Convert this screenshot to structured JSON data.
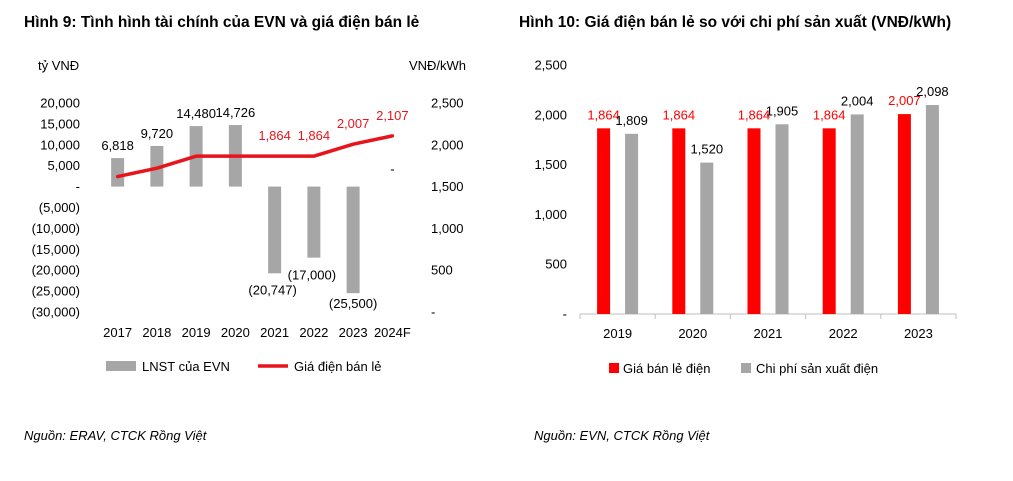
{
  "figure_left": {
    "title": "Hình 9: Tình hình tài chính của EVN và giá điện bán lẻ",
    "source": "Nguồn: ERAV, CTCK Rồng Việt"
  },
  "figure_right": {
    "title": "Hình 10: Giá điện bán lẻ so với chi phí sản xuất (VNĐ/kWh)",
    "source": "Nguồn: EVN, CTCK Rồng Việt"
  },
  "chart_data": [
    {
      "type": "bar",
      "title": "Hình 9: Tình hình tài chính của EVN và giá điện bán lẻ",
      "categories": [
        "2017",
        "2018",
        "2019",
        "2020",
        "2021",
        "2022",
        "2023",
        "2024F"
      ],
      "ylabel": "tỷ VNĐ",
      "y2label": "VNĐ/kWh",
      "ylim": [
        -30000,
        20000
      ],
      "y_ticks": [
        20000,
        15000,
        10000,
        5000,
        0,
        -5000,
        -10000,
        -15000,
        -20000,
        -25000,
        -30000
      ],
      "y_tick_labels": [
        "20,000",
        "15,000",
        "10,000",
        "5,000",
        "-",
        "(5,000)",
        "(10,000)",
        "(15,000)",
        "(20,000)",
        "(25,000)",
        "(30,000)"
      ],
      "y2lim": [
        0,
        2500
      ],
      "y2_ticks": [
        2500,
        2000,
        1500,
        1000,
        500,
        0
      ],
      "y2_tick_labels": [
        "2,500",
        "2,000",
        "1,500",
        "1,000",
        "500",
        "-"
      ],
      "legend_position": "bottom",
      "grid": false,
      "series": [
        {
          "name": "LNST của EVN",
          "kind": "bar",
          "axis": "left",
          "color": "#a6a6a6",
          "values": [
            6818,
            9720,
            14480,
            14726,
            -20747,
            -17000,
            -25500,
            0
          ],
          "labels": [
            "6,818",
            "9,720",
            "14,480",
            "14,726",
            "(20,747)",
            "(17,000)",
            "(25,500)",
            "-"
          ],
          "label_color": "#000000"
        },
        {
          "name": "Giá điện bán lẻ",
          "kind": "line",
          "axis": "right",
          "color": "#e8141b",
          "values": [
            1620,
            1720,
            1864,
            1864,
            1864,
            1864,
            2007,
            2107
          ],
          "labels": [
            "",
            "",
            "",
            "",
            "1,864",
            "1,864",
            "2,007",
            "2,107"
          ],
          "label_color": "#e8141b"
        }
      ]
    },
    {
      "type": "bar",
      "title": "Hình 10: Giá điện bán lẻ so với chi phí sản xuất (VNĐ/kWh)",
      "categories": [
        "2019",
        "2020",
        "2021",
        "2022",
        "2023"
      ],
      "ylim": [
        0,
        2500
      ],
      "y_ticks": [
        2500,
        2000,
        1500,
        1000,
        500,
        0
      ],
      "y_tick_labels": [
        "2,500",
        "2,000",
        "1,500",
        "1,000",
        "500",
        "-"
      ],
      "legend_position": "bottom",
      "grid": false,
      "series": [
        {
          "name": "Giá bán lẻ điện",
          "color": "#ff0000",
          "values": [
            1864,
            1864,
            1864,
            1864,
            2007
          ],
          "labels": [
            "1,864",
            "1,864",
            "1,864",
            "1,864",
            "2,007"
          ],
          "label_color": "#ff0000"
        },
        {
          "name": "Chi phí sản xuất điện",
          "color": "#a6a6a6",
          "values": [
            1809,
            1520,
            1905,
            2004,
            2098
          ],
          "labels": [
            "1,809",
            "1,520",
            "1,905",
            "2,004",
            "2,098"
          ],
          "label_color": "#000000"
        }
      ]
    }
  ]
}
